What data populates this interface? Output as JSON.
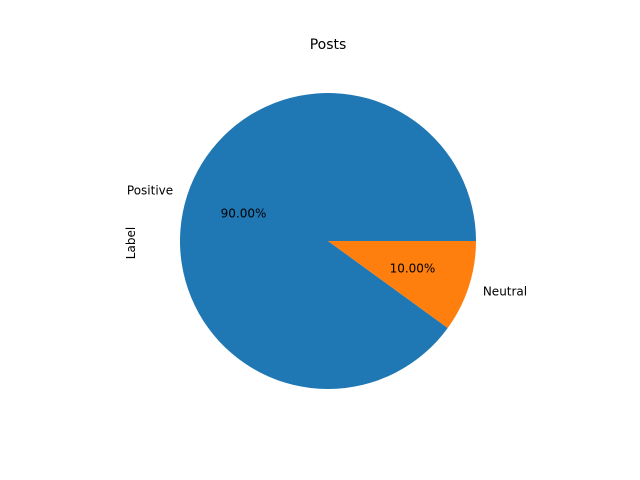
{
  "chart_data": {
    "type": "pie",
    "title": "Posts",
    "ylabel": "Label",
    "categories": [
      "Positive",
      "Neutral"
    ],
    "values": [
      90.0,
      10.0
    ],
    "percent_labels": [
      "90.00%",
      "10.00%"
    ],
    "colors": [
      "#1f77b4",
      "#ff7f0e"
    ],
    "start_angle_deg": 0,
    "direction": "counterclockwise",
    "legend": "none"
  }
}
